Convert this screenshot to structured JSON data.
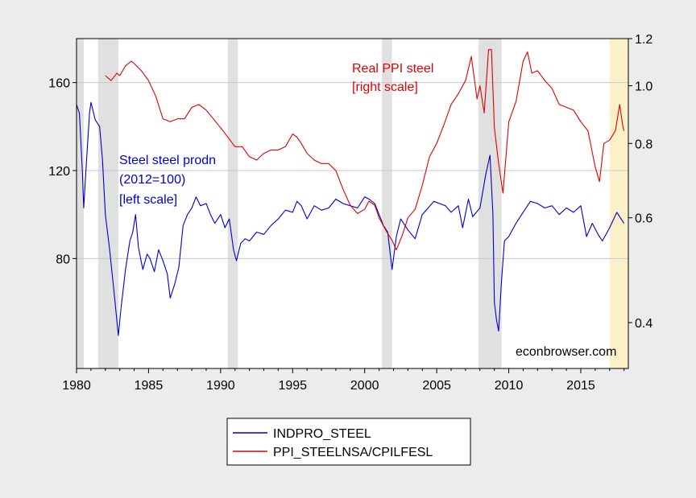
{
  "chart_data": {
    "type": "line",
    "title": "",
    "xlabel": "",
    "x_range": [
      1980.0,
      2018.3
    ],
    "x_ticks": [
      "1980",
      "1985",
      "1990",
      "1995",
      "2000",
      "2005",
      "2010",
      "2015"
    ],
    "left_axis": {
      "label": "",
      "ylim": [
        30,
        180
      ],
      "ticks": [
        "80",
        "120",
        "160"
      ]
    },
    "right_axis": {
      "label": "",
      "scale": "log",
      "ylim": [
        0.335,
        1.2
      ],
      "ticks": [
        "0.4",
        "0.6",
        "0.8",
        "1.0",
        "1.2"
      ]
    },
    "grid": true,
    "recessions": [
      [
        1980.0,
        1980.5
      ],
      [
        1981.5,
        1982.9
      ],
      [
        1990.5,
        1991.2
      ],
      [
        2001.2,
        2001.9
      ],
      [
        2007.9,
        2009.5
      ]
    ],
    "highlight": [
      2017.0,
      2018.3
    ],
    "colors": {
      "INDPRO_STEEL": "#0000cc",
      "PPI_STEELNSA/CPILFESL": "#e00000",
      "recession": "#e0e0e0",
      "highlight": "#fbf0c8"
    },
    "series": [
      {
        "name": "INDPRO_STEEL",
        "axis": "left",
        "x": [
          1980.0,
          1980.2,
          1980.4,
          1980.5,
          1980.7,
          1980.9,
          1981.0,
          1981.3,
          1981.6,
          1981.8,
          1982.0,
          1982.3,
          1982.6,
          1982.9,
          1983.1,
          1983.4,
          1983.7,
          1983.9,
          1984.1,
          1984.3,
          1984.6,
          1984.9,
          1985.1,
          1985.4,
          1985.7,
          1986.0,
          1986.3,
          1986.5,
          1986.8,
          1987.1,
          1987.4,
          1987.7,
          1988.0,
          1988.3,
          1988.6,
          1989.0,
          1989.3,
          1989.6,
          1990.0,
          1990.3,
          1990.6,
          1990.9,
          1991.1,
          1991.4,
          1991.7,
          1992.0,
          1992.5,
          1993.0,
          1993.5,
          1994.0,
          1994.5,
          1995.0,
          1995.3,
          1995.6,
          1996.0,
          1996.5,
          1997.0,
          1997.5,
          1998.0,
          1998.5,
          1999.0,
          1999.5,
          2000.0,
          2000.3,
          2000.7,
          2001.0,
          2001.3,
          2001.6,
          2001.9,
          2002.2,
          2002.5,
          2003.0,
          2003.5,
          2004.0,
          2004.4,
          2004.8,
          2005.2,
          2005.6,
          2006.0,
          2006.5,
          2006.8,
          2007.2,
          2007.5,
          2008.0,
          2008.4,
          2008.7,
          2008.9,
          2009.0,
          2009.15,
          2009.3,
          2009.5,
          2009.7,
          2010.0,
          2010.5,
          2011.0,
          2011.5,
          2012.0,
          2012.5,
          2013.0,
          2013.5,
          2014.0,
          2014.5,
          2015.0,
          2015.4,
          2015.8,
          2016.2,
          2016.5,
          2017.0,
          2017.5,
          2018.0
        ],
        "values": [
          150,
          146,
          120,
          103,
          125,
          146,
          151,
          143,
          140,
          125,
          100,
          84,
          65,
          45,
          58,
          75,
          88,
          92,
          100,
          85,
          75,
          82,
          80,
          74,
          84,
          79,
          73,
          62,
          68,
          76,
          95,
          100,
          103,
          108,
          104,
          105,
          100,
          96,
          100,
          94,
          98,
          84,
          79,
          87,
          89,
          88,
          92,
          91,
          95,
          98,
          102,
          101,
          106,
          104,
          98,
          104,
          102,
          103,
          107,
          105,
          104,
          103,
          108,
          107,
          105,
          100,
          95,
          92,
          75,
          90,
          98,
          93,
          89,
          100,
          103,
          106,
          105,
          104,
          101,
          104,
          94,
          107,
          99,
          103,
          118,
          127,
          100,
          60,
          52,
          47,
          70,
          88,
          90,
          96,
          101,
          106,
          105,
          103,
          104,
          100,
          103,
          101,
          104,
          90,
          96,
          91,
          88,
          94,
          101,
          96
        ],
        "color": "#0000cc"
      },
      {
        "name": "PPI_STEELNSA/CPILFESL",
        "axis": "right",
        "x": [
          1982.0,
          1982.4,
          1982.8,
          1983.0,
          1983.4,
          1983.8,
          1984.0,
          1984.5,
          1985.0,
          1985.5,
          1986.0,
          1986.5,
          1987.0,
          1987.5,
          1988.0,
          1988.5,
          1989.0,
          1989.5,
          1990.0,
          1990.5,
          1991.0,
          1991.5,
          1992.0,
          1992.5,
          1993.0,
          1993.5,
          1994.0,
          1994.5,
          1995.0,
          1995.3,
          1995.6,
          1996.0,
          1996.5,
          1997.0,
          1997.5,
          1998.0,
          1998.5,
          1999.0,
          1999.5,
          2000.0,
          2000.3,
          2000.7,
          2001.0,
          2001.5,
          2001.9,
          2002.2,
          2002.6,
          2003.0,
          2003.5,
          2004.0,
          2004.5,
          2005.0,
          2005.5,
          2006.0,
          2006.5,
          2007.0,
          2007.4,
          2007.8,
          2008.0,
          2008.3,
          2008.6,
          2008.8,
          2009.0,
          2009.3,
          2009.6,
          2010.0,
          2010.5,
          2011.0,
          2011.3,
          2011.6,
          2012.0,
          2012.5,
          2013.0,
          2013.5,
          2014.0,
          2014.5,
          2015.0,
          2015.5,
          2016.0,
          2016.3,
          2016.6,
          2017.0,
          2017.4,
          2017.7,
          2017.9,
          2018.0
        ],
        "values": [
          1.04,
          1.02,
          1.05,
          1.04,
          1.08,
          1.1,
          1.09,
          1.06,
          1.02,
          0.96,
          0.88,
          0.87,
          0.88,
          0.88,
          0.92,
          0.93,
          0.91,
          0.88,
          0.85,
          0.82,
          0.79,
          0.79,
          0.76,
          0.75,
          0.77,
          0.78,
          0.78,
          0.79,
          0.83,
          0.82,
          0.8,
          0.77,
          0.75,
          0.74,
          0.74,
          0.72,
          0.67,
          0.63,
          0.61,
          0.62,
          0.64,
          0.63,
          0.6,
          0.57,
          0.55,
          0.53,
          0.56,
          0.6,
          0.62,
          0.68,
          0.76,
          0.8,
          0.86,
          0.93,
          0.97,
          1.02,
          1.12,
          0.95,
          1.0,
          0.9,
          1.15,
          1.15,
          0.85,
          0.74,
          0.66,
          0.87,
          0.94,
          1.1,
          1.14,
          1.05,
          1.06,
          1.02,
          0.99,
          0.93,
          0.92,
          0.91,
          0.87,
          0.84,
          0.73,
          0.69,
          0.8,
          0.81,
          0.84,
          0.93,
          0.86,
          0.84
        ],
        "color": "#e00000"
      }
    ],
    "annotations": [
      {
        "lines": [
          "Real PPI steel",
          "[right scale]"
        ],
        "color": "#e00000"
      },
      {
        "lines": [
          "Steel steel prodn",
          "(2012=100)",
          "[left scale]"
        ],
        "color": "#0000cc"
      },
      {
        "lines": [
          "econbrowser.com"
        ],
        "color": "#000000"
      }
    ],
    "legend": {
      "placement": "bottom-center",
      "entries": [
        "INDPRO_STEEL",
        "PPI_STEELNSA/CPILFESL"
      ]
    }
  }
}
